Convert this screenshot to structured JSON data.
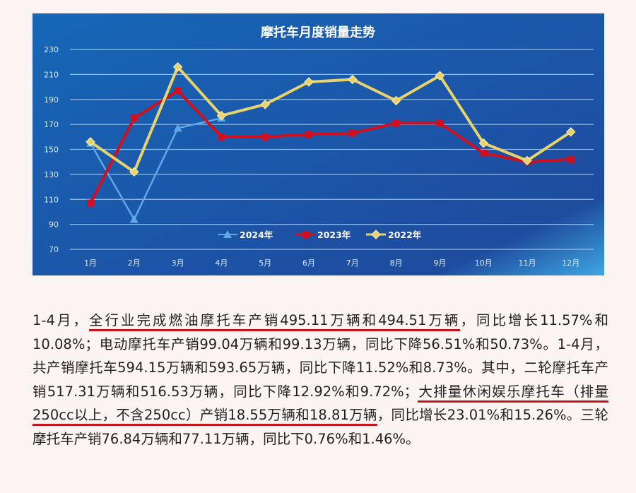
{
  "chart_data": {
    "type": "line",
    "title": "摩托车月度销量走势",
    "xlabel": "",
    "ylabel": "",
    "categories": [
      "1月",
      "2月",
      "3月",
      "4月",
      "5月",
      "6月",
      "7月",
      "8月",
      "9月",
      "10月",
      "11月",
      "12月"
    ],
    "yticks": [
      70,
      90,
      110,
      130,
      150,
      170,
      190,
      210,
      230
    ],
    "ylim": [
      70,
      230
    ],
    "grid": true,
    "legend_position": "bottom-center",
    "series": [
      {
        "name": "2024年",
        "color": "#5fa8e8",
        "marker": "triangle",
        "values": [
          155,
          94,
          167,
          175,
          null,
          null,
          null,
          null,
          null,
          null,
          null,
          null
        ]
      },
      {
        "name": "2023年",
        "color": "#d0101e",
        "marker": "square",
        "values": [
          107,
          175,
          197,
          160,
          160,
          162,
          163,
          171,
          171,
          147,
          140,
          142
        ]
      },
      {
        "name": "2022年",
        "color": "#e8d36a",
        "marker": "diamond",
        "values": [
          156,
          132,
          216,
          177,
          186,
          204,
          206,
          189,
          209,
          155,
          141,
          164
        ]
      }
    ]
  },
  "article": {
    "segments": [
      {
        "text": "1-4月，",
        "underline": false
      },
      {
        "text": "全行业完成燃油摩托车产销495.11万辆和494.51万辆",
        "underline": true
      },
      {
        "text": "，同比增长11.57%和10.08%；电动摩托车产销99.04万辆和99.13万辆，同比下降56.51%和50.73%。1-4月，共产销摩托车594.15万辆和593.65万辆，同比下降11.52%和8.73%。其中，二轮摩托车产销517.31万辆和516.53万辆，同比下降12.92%和9.72%；",
        "underline": false
      },
      {
        "text": "大排量休闲娱乐摩托车（排量250cc以上，不含250cc）产销18.55万辆和18.81万辆",
        "underline": true
      },
      {
        "text": "，同比增长23.01%和15.26%。三轮摩托车产销76.84万辆和77.11万辆，同比下0.76%和1.46%。",
        "underline": false
      }
    ]
  }
}
